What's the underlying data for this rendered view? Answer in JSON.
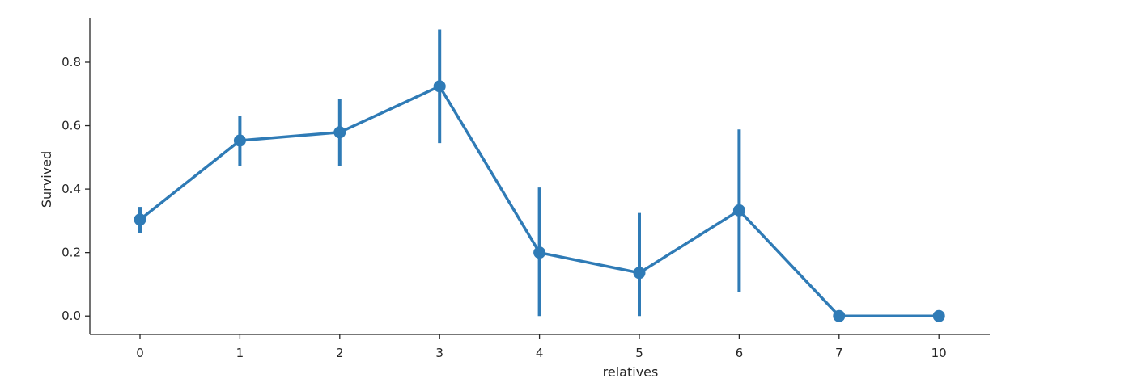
{
  "chart_data": {
    "type": "line",
    "title": "",
    "xlabel": "relatives",
    "ylabel": "Survived",
    "categories": [
      "0",
      "1",
      "2",
      "3",
      "4",
      "5",
      "6",
      "7",
      "10"
    ],
    "series": [
      {
        "values": [
          0.304,
          0.553,
          0.579,
          0.724,
          0.2,
          0.136,
          0.333,
          0.0,
          0.0
        ],
        "ci_low": [
          0.262,
          0.473,
          0.472,
          0.545,
          0.0,
          0.0,
          0.075,
          0.0,
          0.0
        ],
        "ci_high": [
          0.344,
          0.631,
          0.683,
          0.903,
          0.405,
          0.325,
          0.588,
          0.0,
          0.0
        ]
      }
    ],
    "yticks": [
      "0.0",
      "0.2",
      "0.4",
      "0.6",
      "0.8"
    ],
    "ylim": [
      -0.058,
      0.94
    ],
    "grid": false,
    "color": "#2f7bb6"
  }
}
